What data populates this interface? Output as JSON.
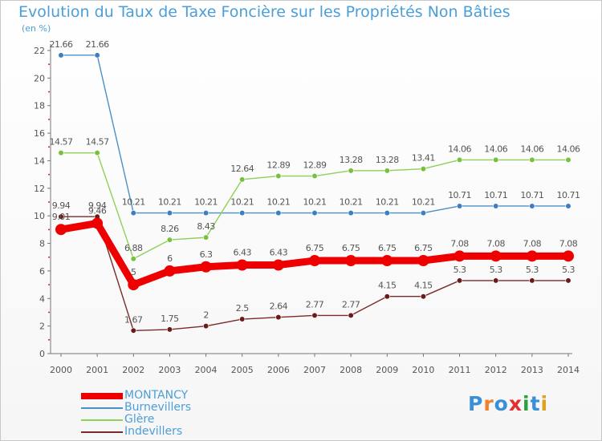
{
  "header": {
    "title": "Evolution du Taux de Taxe Foncière sur les Propriétés Non Bâties",
    "unit": "(en %)"
  },
  "brand": {
    "logo_text": "Proxiti",
    "colors": [
      "#3a8fd8",
      "#f08030",
      "#3a8fd8",
      "#e03030",
      "#2aa040",
      "#3a8fd8",
      "#e0a020"
    ]
  },
  "chart_data": {
    "type": "line",
    "title": "Evolution du Taux de Taxe Foncière sur les Propriétés Non Bâties",
    "ylabel": "(en %)",
    "xlabel": "",
    "ylim": [
      0,
      22
    ],
    "yticks": [
      0,
      2,
      4,
      6,
      8,
      10,
      12,
      14,
      16,
      18,
      20,
      22
    ],
    "grid": false,
    "legend": "bottom-left",
    "x": [
      "2000",
      "2001",
      "2002",
      "2003",
      "2004",
      "2005",
      "2006",
      "2007",
      "2008",
      "2009",
      "2010",
      "2011",
      "2012",
      "2013",
      "2014"
    ],
    "series": [
      {
        "name": "Burnevillers",
        "color": "#4a90c8",
        "dot": "#3a80c0",
        "values": [
          21.66,
          21.66,
          10.21,
          10.21,
          10.21,
          10.21,
          10.21,
          10.21,
          10.21,
          10.21,
          10.21,
          10.71,
          10.71,
          10.71,
          10.71
        ],
        "labels": [
          "21.66",
          "21.66",
          "10.21",
          "10.21",
          "10.21",
          "10.21",
          "10.21",
          "10.21",
          "10.21",
          "10.21",
          "10.21",
          "10.71",
          "10.71",
          "10.71",
          "10.71"
        ]
      },
      {
        "name": "Glère",
        "color": "#8ed05a",
        "dot": "#78c040",
        "values": [
          14.57,
          14.57,
          6.88,
          8.26,
          8.43,
          12.64,
          12.89,
          12.89,
          13.28,
          13.28,
          13.41,
          14.06,
          14.06,
          14.06,
          14.06
        ],
        "labels": [
          "14.57",
          "14.57",
          "6.88",
          "8.26",
          "8.43",
          "12.64",
          "12.89",
          "12.89",
          "13.28",
          "13.28",
          "13.41",
          "14.06",
          "14.06",
          "14.06",
          "14.06"
        ]
      },
      {
        "name": "Indevillers",
        "color": "#7a2a2a",
        "dot": "#6a1a1a",
        "values": [
          9.94,
          9.94,
          1.67,
          1.75,
          2,
          2.5,
          2.64,
          2.77,
          2.77,
          4.15,
          4.15,
          5.3,
          5.3,
          5.3,
          5.3
        ],
        "labels": [
          "9.94",
          "9.94",
          "1.67",
          "1.75",
          "2",
          "2.5",
          "2.64",
          "2.77",
          "2.77",
          "4.15",
          "4.15",
          "5.3",
          "5.3",
          "5.3",
          "5.3"
        ]
      },
      {
        "name": "MONTANCY",
        "color": "#ee0000",
        "dot": "#ee0000",
        "thick": true,
        "values": [
          9.01,
          9.46,
          5,
          6,
          6.3,
          6.43,
          6.43,
          6.75,
          6.75,
          6.75,
          6.75,
          7.08,
          7.08,
          7.08,
          7.08
        ],
        "labels": [
          "9.01",
          "9.46",
          "5",
          "6",
          "6.3",
          "6.43",
          "6.43",
          "6.75",
          "6.75",
          "6.75",
          "6.75",
          "7.08",
          "7.08",
          "7.08",
          "7.08"
        ]
      }
    ],
    "legend_order": [
      "MONTANCY",
      "Burnevillers",
      "Glère",
      "Indevillers"
    ]
  }
}
